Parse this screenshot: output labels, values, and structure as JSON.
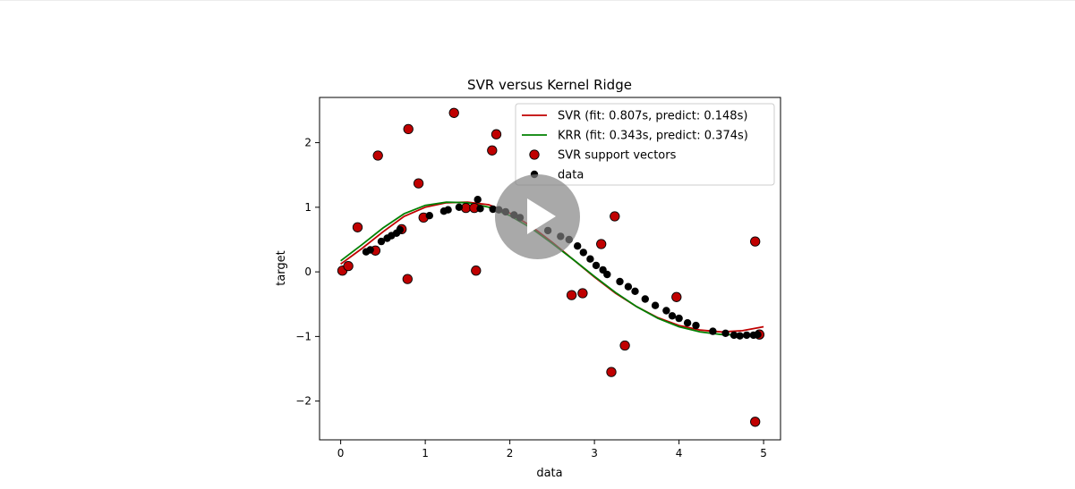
{
  "chart_data": {
    "type": "scatter",
    "title": "SVR versus Kernel Ridge",
    "xlabel": "data",
    "ylabel": "target",
    "xlim": [
      -0.25,
      5.2
    ],
    "ylim": [
      -2.6,
      2.7
    ],
    "x_ticks": [
      0,
      1,
      2,
      3,
      4,
      5
    ],
    "y_ticks": [
      -2,
      -1,
      0,
      1,
      2
    ],
    "grid": false,
    "legend_position": "top-right",
    "colors": {
      "svr_line": "#c00000",
      "krr_line": "#008000",
      "support": "#c00000",
      "data": "#000000"
    },
    "lines": [
      {
        "name": "SVR (fit: 0.807s, predict: 0.148s)",
        "color": "#c00000",
        "x": [
          0,
          0.25,
          0.5,
          0.75,
          1,
          1.25,
          1.5,
          1.75,
          2,
          2.25,
          2.5,
          2.75,
          3,
          3.25,
          3.5,
          3.75,
          4,
          4.25,
          4.5,
          4.75,
          5
        ],
        "y": [
          0.12,
          0.36,
          0.62,
          0.86,
          1.0,
          1.07,
          1.08,
          1.04,
          0.91,
          0.71,
          0.46,
          0.19,
          -0.08,
          -0.33,
          -0.54,
          -0.71,
          -0.83,
          -0.9,
          -0.93,
          -0.91,
          -0.85
        ]
      },
      {
        "name": "KRR (fit: 0.343s, predict: 0.374s)",
        "color": "#008000",
        "x": [
          0,
          0.25,
          0.5,
          0.75,
          1,
          1.25,
          1.5,
          1.75,
          2,
          2.25,
          2.5,
          2.75,
          3,
          3.25,
          3.5,
          3.75,
          4,
          4.25,
          4.5,
          4.75,
          5
        ],
        "y": [
          0.17,
          0.42,
          0.68,
          0.9,
          1.03,
          1.08,
          1.07,
          1.0,
          0.87,
          0.68,
          0.44,
          0.19,
          -0.07,
          -0.32,
          -0.54,
          -0.72,
          -0.85,
          -0.93,
          -0.97,
          -0.98,
          -0.96
        ]
      }
    ],
    "support_vectors": {
      "name": "SVR support vectors",
      "color": "#c00000",
      "points": [
        [
          0.02,
          0.02
        ],
        [
          0.09,
          0.09
        ],
        [
          0.2,
          0.69
        ],
        [
          0.44,
          1.8
        ],
        [
          0.8,
          2.21
        ],
        [
          0.79,
          -0.11
        ],
        [
          0.92,
          1.37
        ],
        [
          0.98,
          0.84
        ],
        [
          1.34,
          2.46
        ],
        [
          1.48,
          0.99
        ],
        [
          1.58,
          0.99
        ],
        [
          1.6,
          0.02
        ],
        [
          1.79,
          1.88
        ],
        [
          1.84,
          2.13
        ],
        [
          2.73,
          -0.36
        ],
        [
          2.86,
          -0.33
        ],
        [
          3.08,
          0.43
        ],
        [
          3.2,
          -1.55
        ],
        [
          3.24,
          0.86
        ],
        [
          3.36,
          -1.14
        ],
        [
          3.97,
          -0.39
        ],
        [
          4.9,
          0.47
        ],
        [
          4.9,
          -2.32
        ],
        [
          4.95,
          -0.97
        ],
        [
          0.72,
          0.66
        ],
        [
          0.41,
          0.33
        ]
      ]
    },
    "data_points": {
      "name": "data",
      "color": "#000000",
      "points": [
        [
          0.3,
          0.31
        ],
        [
          0.35,
          0.34
        ],
        [
          0.48,
          0.47
        ],
        [
          0.55,
          0.52
        ],
        [
          0.6,
          0.56
        ],
        [
          0.66,
          0.6
        ],
        [
          0.7,
          0.65
        ],
        [
          1.05,
          0.87
        ],
        [
          1.22,
          0.94
        ],
        [
          1.27,
          0.96
        ],
        [
          1.4,
          1.0
        ],
        [
          1.62,
          1.12
        ],
        [
          1.65,
          0.98
        ],
        [
          1.8,
          0.97
        ],
        [
          1.87,
          0.96
        ],
        [
          1.95,
          0.93
        ],
        [
          2.05,
          0.88
        ],
        [
          2.12,
          0.84
        ],
        [
          2.27,
          0.74
        ],
        [
          2.45,
          0.64
        ],
        [
          2.6,
          0.55
        ],
        [
          2.7,
          0.5
        ],
        [
          2.8,
          0.4
        ],
        [
          2.87,
          0.3
        ],
        [
          2.95,
          0.2
        ],
        [
          3.02,
          0.1
        ],
        [
          3.1,
          0.03
        ],
        [
          3.15,
          -0.04
        ],
        [
          3.3,
          -0.15
        ],
        [
          3.4,
          -0.23
        ],
        [
          3.48,
          -0.3
        ],
        [
          3.6,
          -0.42
        ],
        [
          3.72,
          -0.52
        ],
        [
          3.85,
          -0.6
        ],
        [
          3.92,
          -0.68
        ],
        [
          4.0,
          -0.72
        ],
        [
          4.1,
          -0.79
        ],
        [
          4.2,
          -0.83
        ],
        [
          4.4,
          -0.92
        ],
        [
          4.55,
          -0.95
        ],
        [
          4.65,
          -0.98
        ],
        [
          4.72,
          -0.99
        ],
        [
          4.8,
          -0.98
        ],
        [
          4.88,
          -0.98
        ],
        [
          4.93,
          -0.97
        ]
      ]
    },
    "legend": [
      {
        "label": "SVR (fit: 0.807s, predict: 0.148s)",
        "kind": "line",
        "color": "#c00000"
      },
      {
        "label": "KRR (fit: 0.343s, predict: 0.374s)",
        "kind": "line",
        "color": "#008000"
      },
      {
        "label": "SVR support vectors",
        "kind": "marker",
        "color": "#c00000"
      },
      {
        "label": "data",
        "kind": "marker",
        "color": "#000000"
      }
    ]
  },
  "player": {
    "icon": "play-icon"
  }
}
